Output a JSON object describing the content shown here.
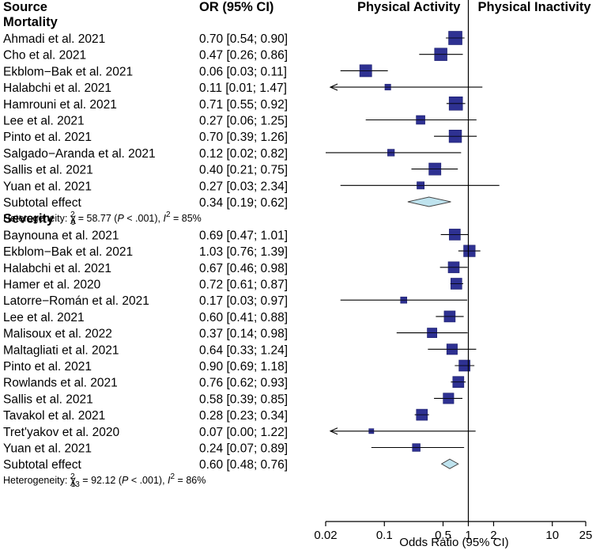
{
  "chart_data": {
    "type": "forest",
    "header": {
      "source": "Source",
      "estimate": "OR (95% CI)",
      "favors_left": "Physical Activity",
      "favors_right": "Physical Inactivity"
    },
    "xlabel": "Odds Ratio (95% CI)",
    "x_scale": "log",
    "xlim": [
      0.02,
      25
    ],
    "x_ticks": [
      0.02,
      0.1,
      0.5,
      1,
      2,
      10,
      25
    ],
    "x_tick_labels": [
      "0.02",
      "0.1",
      "0.5",
      "1",
      "2",
      "10",
      "25"
    ],
    "reference_line": 1,
    "groups": [
      {
        "name": "Mortality",
        "studies": [
          {
            "source": "Ahmadi et al. 2021",
            "ci_text": "0.70 [0.54; 0.90]",
            "or": 0.7,
            "lower": 0.54,
            "upper": 0.9,
            "weight": 1.0
          },
          {
            "source": "Cho et al. 2021",
            "ci_text": "0.47 [0.26; 0.86]",
            "or": 0.47,
            "lower": 0.26,
            "upper": 0.86,
            "weight": 0.9
          },
          {
            "source": "Ekblom−Bak et al. 2021",
            "ci_text": "0.06 [0.03; 0.11]",
            "or": 0.06,
            "lower": 0.03,
            "upper": 0.11,
            "weight": 0.85
          },
          {
            "source": "Halabchi et al. 2021",
            "ci_text": "0.11 [0.01; 1.47]",
            "or": 0.11,
            "lower": 0.01,
            "upper": 1.47,
            "weight": 0.2
          },
          {
            "source": "Hamrouni et al. 2021",
            "ci_text": "0.71 [0.55; 0.92]",
            "or": 0.71,
            "lower": 0.55,
            "upper": 0.92,
            "weight": 1.0
          },
          {
            "source": "Lee et al. 2021",
            "ci_text": "0.27 [0.06; 1.25]",
            "or": 0.27,
            "lower": 0.06,
            "upper": 1.25,
            "weight": 0.5
          },
          {
            "source": "Pinto et al. 2021",
            "ci_text": "0.70 [0.39; 1.26]",
            "or": 0.7,
            "lower": 0.39,
            "upper": 1.26,
            "weight": 0.9
          },
          {
            "source": "Salgado−Aranda et al. 2021",
            "ci_text": "0.12 [0.02; 0.82]",
            "or": 0.12,
            "lower": 0.02,
            "upper": 0.82,
            "weight": 0.3
          },
          {
            "source": "Sallis et al. 2021",
            "ci_text": "0.40 [0.21; 0.75]",
            "or": 0.4,
            "lower": 0.21,
            "upper": 0.75,
            "weight": 0.85
          },
          {
            "source": "Yuan et al. 2021",
            "ci_text": "0.27 [0.03; 2.34]",
            "or": 0.27,
            "lower": 0.03,
            "upper": 2.34,
            "weight": 0.35
          }
        ],
        "subtotal": {
          "label": "Subtotal effect",
          "ci_text": "0.34 [0.19; 0.62]",
          "or": 0.34,
          "lower": 0.19,
          "upper": 0.62
        },
        "heterogeneity": {
          "prefix": "Heterogeneity: ",
          "chi": "χ",
          "df": "9",
          "eq": " = 58.77 (",
          "p": "P",
          "pval": " < .001), ",
          "i": "I",
          "sq": "2",
          "ival": " = 85%"
        }
      },
      {
        "name": "Severity",
        "studies": [
          {
            "source": "Baynouna et al. 2021",
            "ci_text": "0.69 [0.47; 1.01]",
            "or": 0.69,
            "lower": 0.47,
            "upper": 1.01,
            "weight": 0.75
          },
          {
            "source": "Ekblom−Bak et al. 2021",
            "ci_text": "1.03 [0.76; 1.39]",
            "or": 1.03,
            "lower": 0.76,
            "upper": 1.39,
            "weight": 0.8
          },
          {
            "source": "Halabchi et al. 2021",
            "ci_text": "0.67 [0.46; 0.98]",
            "or": 0.67,
            "lower": 0.46,
            "upper": 0.98,
            "weight": 0.75
          },
          {
            "source": "Hamer et al. 2020",
            "ci_text": "0.72 [0.61; 0.87]",
            "or": 0.72,
            "lower": 0.61,
            "upper": 0.87,
            "weight": 0.75
          },
          {
            "source": "Latorre−Román et al. 2021",
            "ci_text": "0.17 [0.03; 0.97]",
            "or": 0.17,
            "lower": 0.03,
            "upper": 0.97,
            "weight": 0.25
          },
          {
            "source": "Lee et al. 2021",
            "ci_text": "0.60 [0.41; 0.88]",
            "or": 0.6,
            "lower": 0.41,
            "upper": 0.88,
            "weight": 0.75
          },
          {
            "source": "Malisoux et al. 2022",
            "ci_text": "0.37 [0.14; 0.98]",
            "or": 0.37,
            "lower": 0.14,
            "upper": 0.98,
            "weight": 0.6
          },
          {
            "source": "Maltagliati et al. 2021",
            "ci_text": "0.64 [0.33; 1.24]",
            "or": 0.64,
            "lower": 0.33,
            "upper": 1.24,
            "weight": 0.7
          },
          {
            "source": "Pinto et al. 2021",
            "ci_text": "0.90 [0.69; 1.18]",
            "or": 0.9,
            "lower": 0.69,
            "upper": 1.18,
            "weight": 0.75
          },
          {
            "source": "Rowlands et al. 2021",
            "ci_text": "0.76 [0.62; 0.93]",
            "or": 0.76,
            "lower": 0.62,
            "upper": 0.93,
            "weight": 0.75
          },
          {
            "source": "Sallis et al. 2021",
            "ci_text": "0.58 [0.39; 0.85]",
            "or": 0.58,
            "lower": 0.39,
            "upper": 0.85,
            "weight": 0.7
          },
          {
            "source": "Tavakol et al. 2021",
            "ci_text": "0.28 [0.23; 0.34]",
            "or": 0.28,
            "lower": 0.23,
            "upper": 0.34,
            "weight": 0.75
          },
          {
            "source": "Tret'yakov et al. 2020",
            "ci_text": "0.07 [0.00; 1.22]",
            "or": 0.07,
            "lower": 0.0,
            "upper": 1.22,
            "weight": 0.1
          },
          {
            "source": "Yuan et al. 2021",
            "ci_text": "0.24 [0.07; 0.89]",
            "or": 0.24,
            "lower": 0.07,
            "upper": 0.89,
            "weight": 0.4
          }
        ],
        "subtotal": {
          "label": "Subtotal effect",
          "ci_text": "0.60 [0.48; 0.76]",
          "or": 0.6,
          "lower": 0.48,
          "upper": 0.76
        },
        "heterogeneity": {
          "prefix": "Heterogeneity: ",
          "chi": "χ",
          "df": "13",
          "eq": " = 92.12 (",
          "p": "P",
          "pval": " < .001), ",
          "i": "I",
          "sq": "2",
          "ival": " = 86%"
        }
      }
    ],
    "colors": {
      "box": "#2e3192",
      "box_edge": "#1a1d6b",
      "diamond": "#bfe3ee",
      "diamond_edge": "#444444",
      "line": "#000000"
    }
  }
}
